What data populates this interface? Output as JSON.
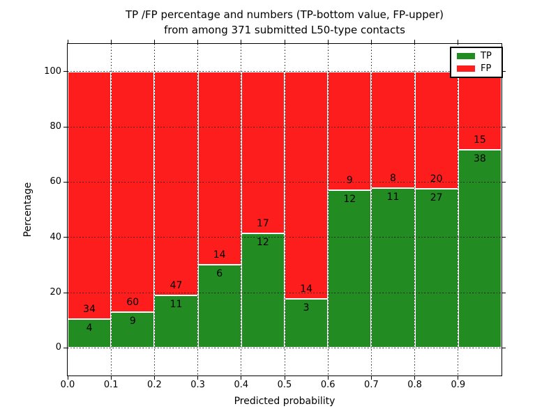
{
  "title": {
    "line1": "TP /FP percentage and numbers (TP-bottom value, FP-upper)",
    "line2": "from among 371 submitted L50-type contacts"
  },
  "axes": {
    "xlabel": "Predicted probability",
    "ylabel": "Percentage"
  },
  "legend": {
    "items": [
      {
        "label": "TP",
        "color": "#228b22"
      },
      {
        "label": "FP",
        "color": "#fd1d1d"
      }
    ]
  },
  "chart_data": {
    "type": "bar",
    "stacked": true,
    "normalized_to_percent": 100,
    "title": "TP /FP percentage and numbers (TP-bottom value, FP-upper) from among 371 submitted L50-type contacts",
    "xlabel": "Predicted probability",
    "ylabel": "Percentage",
    "total_contacts": 371,
    "bin_edges": [
      0.0,
      0.1,
      0.2,
      0.3,
      0.4,
      0.5,
      0.6,
      0.7,
      0.8,
      0.9,
      1.0
    ],
    "series": [
      {
        "name": "TP",
        "color": "#228b22",
        "counts": [
          4,
          9,
          11,
          6,
          12,
          3,
          12,
          11,
          27,
          38
        ]
      },
      {
        "name": "FP",
        "color": "#fd1d1d",
        "counts": [
          34,
          60,
          47,
          14,
          17,
          14,
          9,
          8,
          20,
          15
        ]
      }
    ],
    "tp_percent_of_bin": [
      10.5,
      13.0,
      19.0,
      30.0,
      41.4,
      17.6,
      57.1,
      57.9,
      57.4,
      71.7
    ],
    "xticks": [
      "0.0",
      "0.1",
      "0.2",
      "0.3",
      "0.4",
      "0.5",
      "0.6",
      "0.7",
      "0.8",
      "0.9"
    ],
    "yticks": [
      0,
      20,
      40,
      60,
      80,
      100
    ],
    "xlim": [
      0.0,
      1.0
    ],
    "ylim": [
      -10,
      110
    ],
    "grid": true,
    "grid_style": "dotted",
    "legend_position": "upper right",
    "bar_label_rule": "TP count printed just below each stack boundary, FP count just above it"
  }
}
